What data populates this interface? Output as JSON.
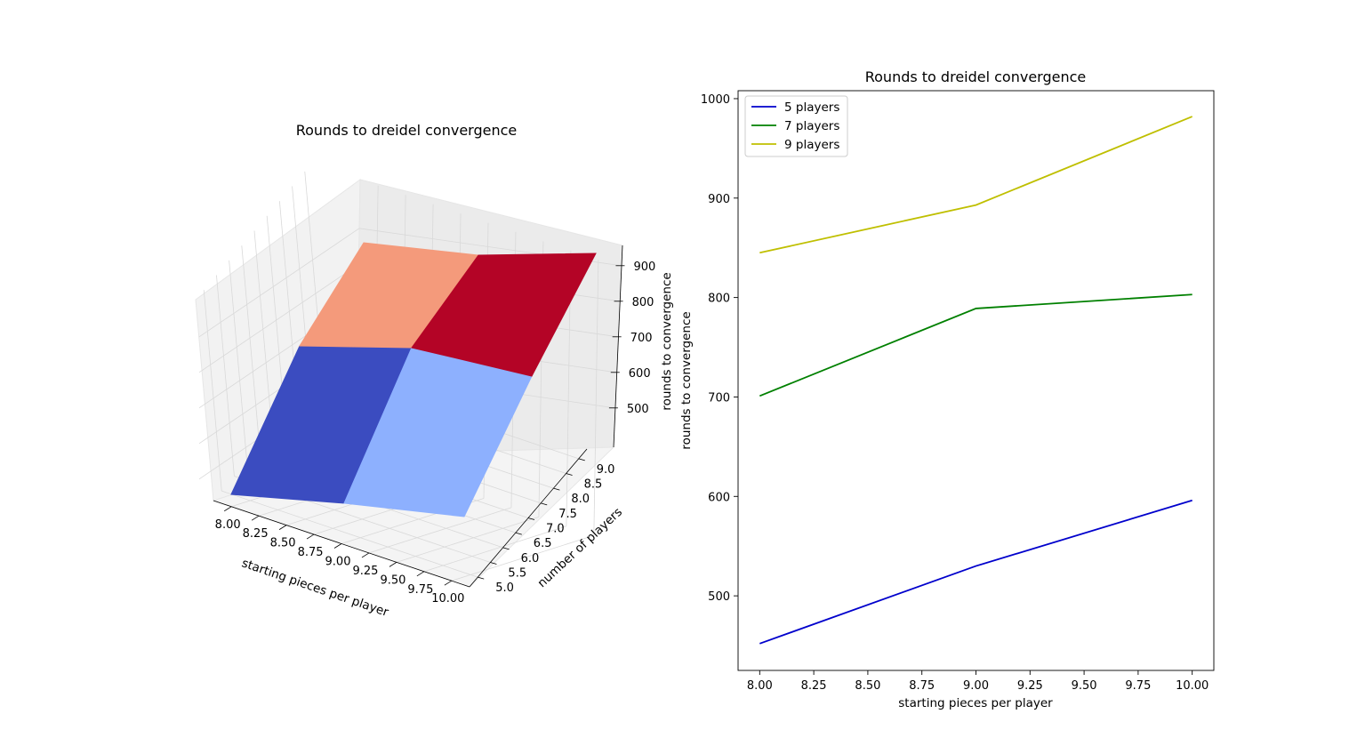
{
  "chart_data": [
    {
      "type": "surface",
      "title": "Rounds to dreidel convergence",
      "xlabel": "starting pieces per player",
      "ylabel": "number of players",
      "zlabel": "rounds to convergence",
      "x": [
        8,
        9,
        10
      ],
      "y": [
        5,
        7,
        9
      ],
      "z": [
        [
          452,
          530,
          596
        ],
        [
          701,
          789,
          803
        ],
        [
          845,
          893,
          982
        ]
      ],
      "x_ticks": [
        "8.00",
        "8.25",
        "8.50",
        "8.75",
        "9.00",
        "9.25",
        "9.50",
        "9.75",
        "10.00"
      ],
      "y_ticks": [
        "5.0",
        "5.5",
        "6.0",
        "6.5",
        "7.0",
        "7.5",
        "8.0",
        "8.5",
        "9.0"
      ],
      "z_ticks": [
        "500",
        "600",
        "700",
        "800",
        "900"
      ],
      "colormap": "coolwarm",
      "patch_colors": [
        "#3b4cc0",
        "#8db0fe",
        "#f49a7b",
        "#b40426"
      ]
    },
    {
      "type": "line",
      "title": "Rounds to dreidel convergence",
      "xlabel": "starting pieces per player",
      "ylabel": "rounds to convergence",
      "x": [
        8,
        9,
        10
      ],
      "xlim": [
        7.9,
        10.1
      ],
      "ylim": [
        425,
        1008
      ],
      "x_ticks": [
        "8.00",
        "8.25",
        "8.50",
        "8.75",
        "9.00",
        "9.25",
        "9.50",
        "9.75",
        "10.00"
      ],
      "y_ticks": [
        "500",
        "600",
        "700",
        "800",
        "900",
        "1000"
      ],
      "legend_position": "upper-left",
      "series": [
        {
          "name": "5 players",
          "values": [
            452,
            530,
            596
          ],
          "color": "#0000cc"
        },
        {
          "name": "7 players",
          "values": [
            701,
            789,
            803
          ],
          "color": "#008000"
        },
        {
          "name": "9 players",
          "values": [
            845,
            893,
            982
          ],
          "color": "#bfbf00"
        }
      ]
    }
  ]
}
